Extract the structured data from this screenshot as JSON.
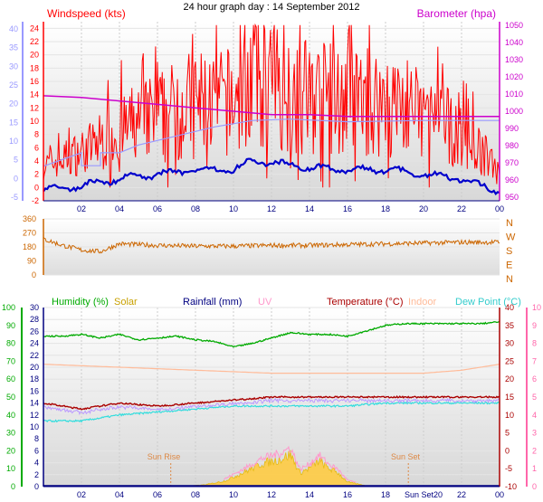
{
  "title": "24 hour graph day : 14 September 2012",
  "colors": {
    "windspeed": "#ff0000",
    "wind_avg": "#0000cc",
    "barometer": "#cc00cc",
    "baro_alt": "#9999ff",
    "direction": "#cc6600",
    "humidity": "#00aa00",
    "solar": "#e6b800",
    "solar_fill": "#ffcc44",
    "rainfall": "#000080",
    "uv": "#ff99cc",
    "temperature": "#aa0000",
    "indoor": "#ffbb99",
    "dewpoint": "#33dddd",
    "events": "#dd8844",
    "left_axis_top": "#9999ff",
    "left_axis_bottom": "#00aa00",
    "right_axis_bottom": "#ff66aa"
  },
  "chart_data": [
    {
      "type": "line",
      "panel": "wind-barometer",
      "series": [
        {
          "name": "Windspeed (kts)",
          "x": [
            0,
            2,
            4,
            6,
            8,
            10,
            11,
            12,
            13,
            14,
            16,
            18,
            20,
            22,
            23,
            24
          ],
          "values": [
            3,
            5,
            8,
            10,
            12,
            12,
            16,
            15,
            14,
            13,
            12,
            12,
            10,
            8,
            5,
            3
          ]
        },
        {
          "name": "Barometer (hpa)",
          "x": [
            0,
            2,
            4,
            6,
            8,
            10,
            12,
            14,
            16,
            18,
            20,
            22,
            24
          ],
          "values": [
            1009,
            1008,
            1006,
            1004,
            1002,
            1000,
            998,
            998,
            997,
            997,
            997,
            997,
            997
          ]
        }
      ],
      "x_ticks": [
        "02",
        "04",
        "06",
        "08",
        "10",
        "12",
        "14",
        "16",
        "18",
        "20",
        "22",
        "00"
      ],
      "y_left_ticks": [
        "24",
        "22",
        "20",
        "18",
        "16",
        "14",
        "12",
        "10",
        "8",
        "6",
        "4",
        "2",
        "0",
        "-2"
      ],
      "y_left_range": [
        -2,
        25
      ],
      "y_outer_ticks": [
        "40",
        "35",
        "30",
        "25",
        "20",
        "15",
        "10",
        "5",
        "0",
        "-5"
      ],
      "y_right_ticks": [
        "1050",
        "1040",
        "1030",
        "1020",
        "1010",
        "1000",
        "990",
        "980",
        "970",
        "960",
        "950"
      ],
      "y_right_range": [
        948,
        1052
      ]
    },
    {
      "type": "line",
      "panel": "direction",
      "series": [
        {
          "name": "Wind direction",
          "x": [
            0,
            1,
            2,
            3,
            4,
            6,
            8,
            10,
            12,
            14,
            16,
            18,
            20,
            22,
            24
          ],
          "values": [
            230,
            190,
            160,
            150,
            200,
            190,
            185,
            185,
            190,
            190,
            195,
            200,
            205,
            210,
            210
          ]
        }
      ],
      "y_ticks": [
        "360",
        "270",
        "180",
        "90",
        "0"
      ],
      "y_range": [
        0,
        360
      ],
      "compass": [
        "N",
        "W",
        "S",
        "E",
        "N"
      ]
    },
    {
      "type": "line",
      "panel": "humidity-temperature",
      "legend": [
        "Humidity (%)",
        "Solar",
        "Rainfall (mm)",
        "UV",
        "Temperature (°C)",
        "Indoor",
        "Dew Point (°C)"
      ],
      "series": [
        {
          "name": "Humidity (%)",
          "x": [
            0,
            1,
            2,
            3,
            4,
            5,
            6,
            7,
            8,
            9,
            10,
            11,
            12,
            13,
            14,
            15,
            16,
            17,
            18,
            19,
            20,
            21,
            22,
            23,
            24
          ],
          "values": [
            84,
            84,
            85,
            83,
            85,
            82,
            83,
            84,
            82,
            81,
            78,
            80,
            83,
            86,
            85,
            85,
            84,
            87,
            90,
            91,
            91,
            91,
            91,
            91,
            92
          ]
        },
        {
          "name": "Temperature (°C)",
          "x": [
            0,
            2,
            4,
            6,
            8,
            10,
            12,
            14,
            16,
            18,
            20,
            22,
            24
          ],
          "values": [
            14,
            13,
            14,
            13.5,
            14,
            14.5,
            15,
            15,
            15,
            15,
            15,
            15,
            15
          ]
        },
        {
          "name": "Indoor",
          "x": [
            0,
            4,
            8,
            12,
            16,
            20,
            22,
            24
          ],
          "values": [
            20.5,
            20,
            19.5,
            19,
            19,
            19,
            19.5,
            20.5
          ]
        },
        {
          "name": "Dew Point (°C)",
          "x": [
            0,
            2,
            4,
            6,
            8,
            10,
            12,
            14,
            16,
            18,
            20,
            22,
            24
          ],
          "values": [
            11,
            11,
            12,
            12.5,
            13,
            13.5,
            13.5,
            13.5,
            13.5,
            14,
            14,
            14,
            14
          ]
        },
        {
          "name": "Solar",
          "x": [
            6.7,
            7.5,
            8.5,
            9.5,
            10.5,
            11.5,
            12.5,
            13,
            13.5,
            14,
            14.5,
            15,
            15.5,
            16,
            17,
            18,
            19.2
          ],
          "values": [
            0,
            5,
            20,
            60,
            150,
            250,
            300,
            350,
            150,
            200,
            280,
            200,
            150,
            50,
            10,
            2,
            0
          ]
        }
      ],
      "x_ticks": [
        "02",
        "04",
        "06",
        "08",
        "10",
        "12",
        "14",
        "16",
        "18",
        "Sun Set20",
        "22",
        "00"
      ],
      "y_humidity_ticks": [
        "100",
        "90",
        "80",
        "70",
        "60",
        "50",
        "40",
        "30",
        "20",
        "10",
        "0"
      ],
      "y_temp_left_ticks": [
        "30",
        "28",
        "26",
        "24",
        "22",
        "20",
        "18",
        "16",
        "14",
        "12",
        "10",
        "8",
        "6",
        "4",
        "2",
        "0"
      ],
      "y_temp_right_ticks": [
        "40",
        "35",
        "30",
        "25",
        "20",
        "15",
        "10",
        "5",
        "0",
        "-5",
        "-10"
      ],
      "y_uv_ticks": [
        "10",
        "9",
        "8",
        "7",
        "6",
        "5",
        "4",
        "3",
        "2",
        "1",
        "0"
      ],
      "y_temp_range": [
        0,
        30
      ],
      "events": [
        {
          "label": "Sun Rise",
          "x": 6.7
        },
        {
          "label": "Sun Set",
          "x": 19.2
        }
      ]
    }
  ]
}
